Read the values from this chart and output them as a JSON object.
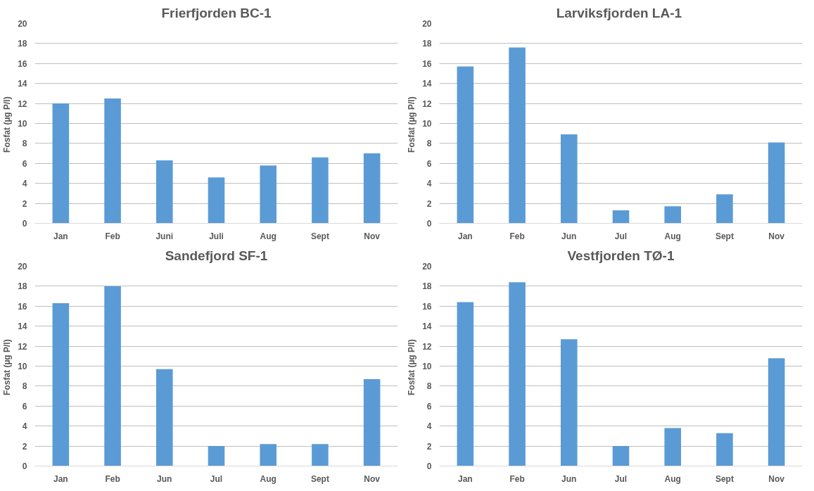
{
  "chart_data": [
    {
      "type": "bar",
      "title": "Frierfjorden BC-1",
      "ylabel": "Fosfat  (µg P/l)",
      "categories": [
        "Jan",
        "Feb",
        "Juni",
        "Juli",
        "Aug",
        "Sept",
        "Nov"
      ],
      "values": [
        12.0,
        12.5,
        6.3,
        4.6,
        5.8,
        6.6,
        7.0
      ],
      "color": "#5b9bd5",
      "ylim": [
        0,
        20
      ],
      "yticks": [
        0,
        2,
        4,
        6,
        8,
        10,
        12,
        14,
        16,
        18,
        20
      ],
      "grid": "y"
    },
    {
      "type": "bar",
      "title": "Larviksfjorden  LA-1",
      "ylabel": "Fosfat  (µg P/l)",
      "categories": [
        "Jan",
        "Feb",
        "Jun",
        "Jul",
        "Aug",
        "Sept",
        "Nov"
      ],
      "values": [
        15.7,
        17.6,
        8.9,
        1.3,
        1.7,
        2.9,
        8.1
      ],
      "color": "#5b9bd5",
      "ylim": [
        0,
        20
      ],
      "yticks": [
        0,
        2,
        4,
        6,
        8,
        10,
        12,
        14,
        16,
        18,
        20
      ],
      "grid": "y"
    },
    {
      "type": "bar",
      "title": "Sandefjord SF-1",
      "ylabel": "Fosfat  (µg P/l)",
      "categories": [
        "Jan",
        "Feb",
        "Jun",
        "Jul",
        "Aug",
        "Sept",
        "Nov"
      ],
      "values": [
        16.3,
        18.0,
        9.7,
        2.0,
        2.2,
        2.2,
        8.7
      ],
      "color": "#5b9bd5",
      "ylim": [
        0,
        20
      ],
      "yticks": [
        0,
        2,
        4,
        6,
        8,
        10,
        12,
        14,
        16,
        18,
        20
      ],
      "grid": "y"
    },
    {
      "type": "bar",
      "title": "Vestfjorden TØ-1",
      "ylabel": "Fosfat  (µg P/l)",
      "categories": [
        "Jan",
        "Feb",
        "Jun",
        "Jul",
        "Aug",
        "Sept",
        "Nov"
      ],
      "values": [
        16.4,
        18.4,
        12.7,
        2.0,
        3.8,
        3.3,
        10.8
      ],
      "color": "#5b9bd5",
      "ylim": [
        0,
        20
      ],
      "yticks": [
        0,
        2,
        4,
        6,
        8,
        10,
        12,
        14,
        16,
        18,
        20
      ],
      "grid": "y"
    }
  ]
}
